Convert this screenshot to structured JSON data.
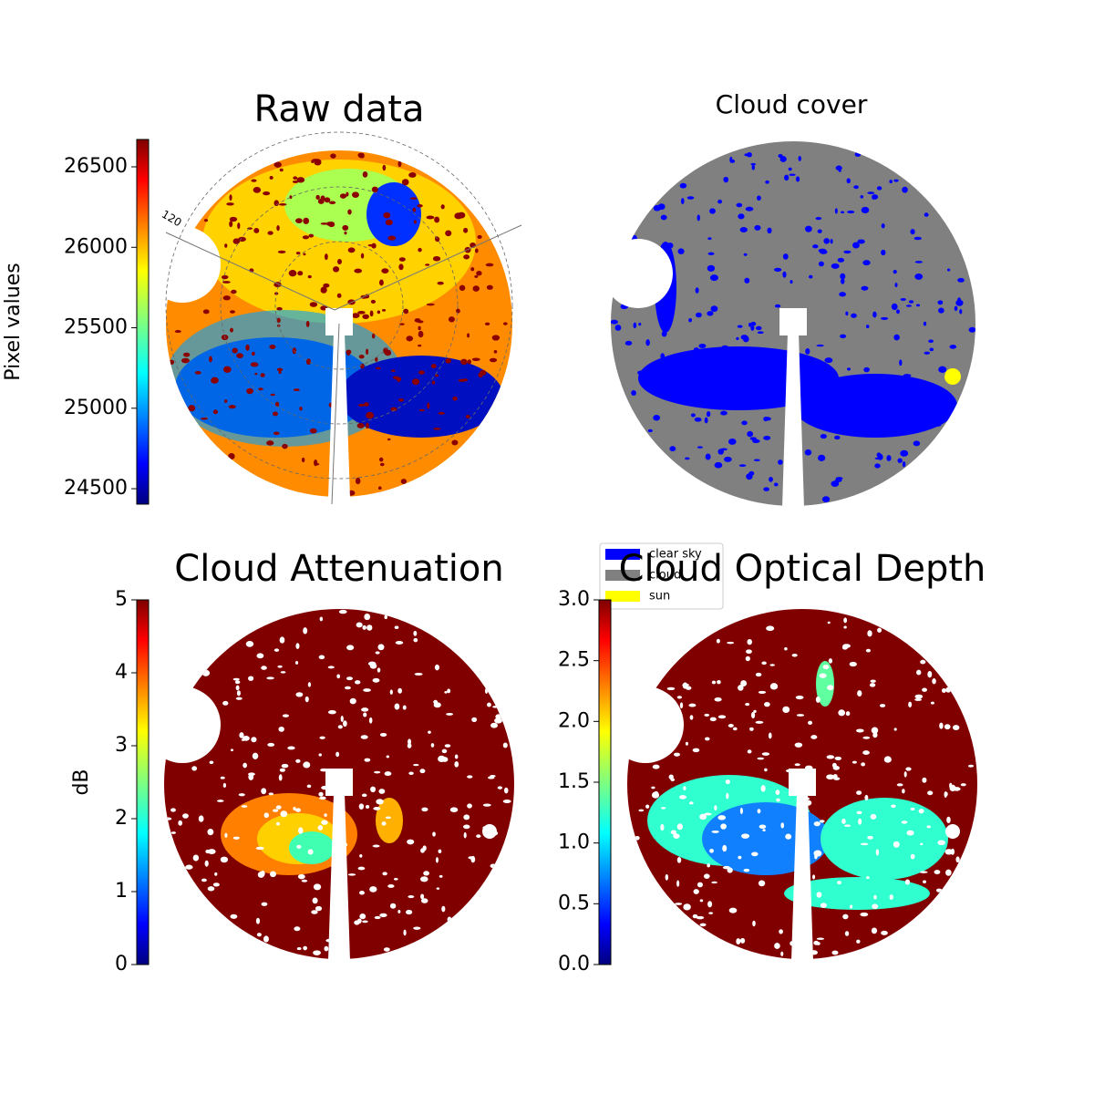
{
  "chart_data": [
    {
      "type": "image",
      "title": "Raw data",
      "colorbar_label": "Pixel values",
      "clim": [
        24404,
        26670
      ],
      "cticks": [
        24500,
        25000,
        25500,
        26000,
        26500
      ],
      "colormap": "jet",
      "annotations": [
        "120"
      ]
    },
    {
      "type": "image",
      "title": "Cloud cover",
      "series": [
        {
          "name": "clear sky",
          "color": "#0000ff"
        },
        {
          "name": "cloud",
          "color": "#808080"
        },
        {
          "name": "sun",
          "color": "#ffff00"
        }
      ]
    },
    {
      "type": "image",
      "title": "Cloud Attenuation",
      "colorbar_label": "dB",
      "clim": [
        0,
        5
      ],
      "cticks": [
        0,
        1,
        2,
        3,
        4,
        5
      ],
      "colormap": "jet"
    },
    {
      "type": "image",
      "title": "Cloud Optical Depth",
      "clim": [
        0,
        3
      ],
      "cticks": [
        {
          "value": 0,
          "label": "0.0"
        },
        {
          "value": 0.5,
          "label": "0.5"
        },
        {
          "value": 1,
          "label": "1.0"
        },
        {
          "value": 1.5,
          "label": "1.5"
        },
        {
          "value": 2,
          "label": "2.0"
        },
        {
          "value": 2.5,
          "label": "2.5"
        },
        {
          "value": 3,
          "label": "3.0"
        }
      ],
      "colormap": "jet"
    }
  ]
}
